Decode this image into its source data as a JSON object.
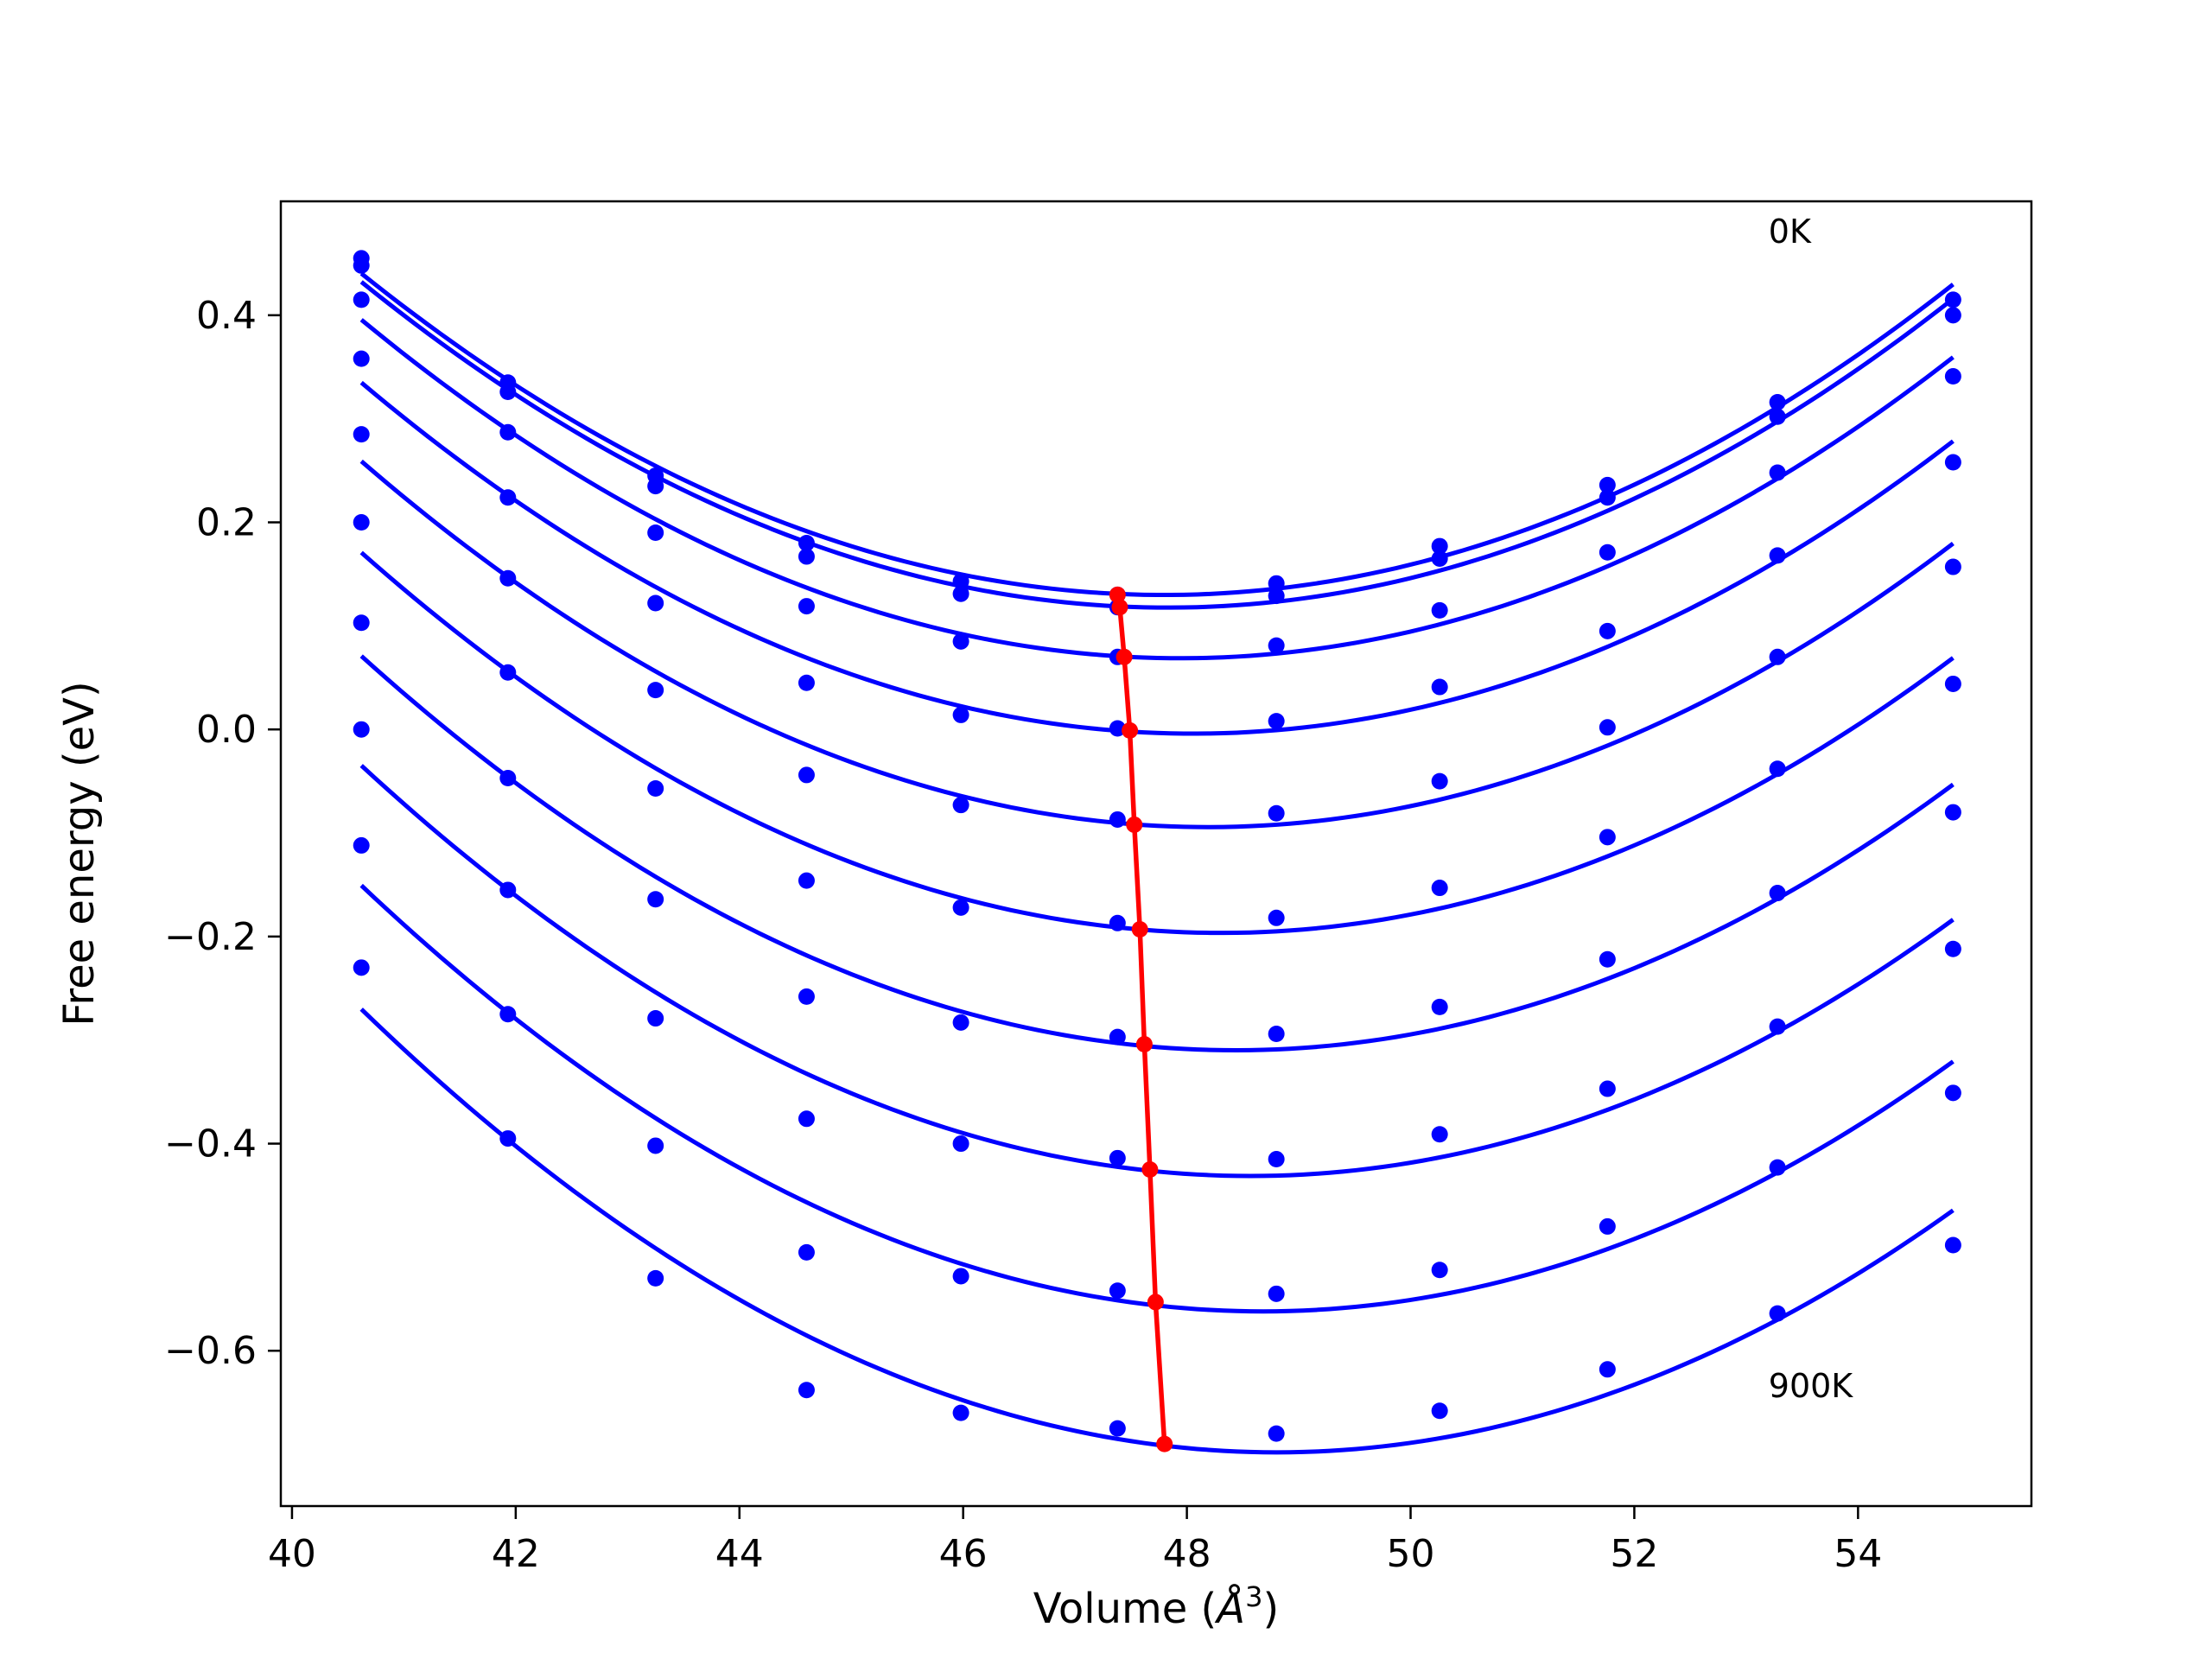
{
  "chart_data": {
    "type": "line",
    "xlabel_prefix": "Volume (",
    "xlabel_unit": "Å",
    "xlabel_exp": "3",
    "xlabel_suffix": ")",
    "ylabel": "Free energy (eV)",
    "xlim": [
      39.9,
      55.55
    ],
    "ylim": [
      -0.75,
      0.51
    ],
    "xticks": [
      40,
      42,
      44,
      46,
      48,
      50,
      52,
      54
    ],
    "xtick_labels": [
      "40",
      "42",
      "44",
      "46",
      "48",
      "50",
      "52",
      "54"
    ],
    "yticks": [
      -0.6,
      -0.4,
      -0.2,
      0.0,
      0.2,
      0.4
    ],
    "ytick_labels": [
      "−0.6",
      "−0.4",
      "−0.2",
      "0.0",
      "0.2",
      "0.4"
    ],
    "grid": false,
    "colors": {
      "fit": "#0000ff",
      "points": "#0000ff",
      "minimum": "#ff0000",
      "frame": "#000000"
    },
    "annotations": [
      {
        "text": "0K",
        "x": 53.2,
        "y": 0.47
      },
      {
        "text": "900K",
        "x": 53.2,
        "y": -0.645
      }
    ],
    "x_points": [
      40.62,
      41.93,
      43.25,
      44.6,
      45.98,
      47.38,
      48.8,
      50.26,
      51.76,
      53.28,
      54.85
    ],
    "series": [
      {
        "values": [
          0.455,
          0.335,
          0.245,
          0.18,
          0.143,
          0.13,
          0.141,
          0.177,
          0.236,
          0.316,
          0.415
        ],
        "min": [
          47.38,
          0.13
        ]
      },
      {
        "values": [
          0.448,
          0.326,
          0.235,
          0.167,
          0.131,
          0.118,
          0.129,
          0.165,
          0.224,
          0.302,
          0.4
        ],
        "min": [
          47.4,
          0.118
        ]
      },
      {
        "values": [
          0.415,
          0.287,
          0.19,
          0.119,
          0.085,
          0.07,
          0.081,
          0.115,
          0.171,
          0.248,
          0.341
        ],
        "min": [
          47.44,
          0.07
        ]
      },
      {
        "values": [
          0.358,
          0.224,
          0.122,
          0.045,
          0.014,
          0.001,
          0.008,
          0.041,
          0.095,
          0.168,
          0.258
        ],
        "min": [
          47.49,
          -0.001
        ]
      },
      {
        "values": [
          0.285,
          0.146,
          0.038,
          -0.044,
          -0.073,
          -0.087,
          -0.081,
          -0.05,
          0.002,
          0.07,
          0.157
        ],
        "min": [
          47.53,
          -0.092
        ]
      },
      {
        "values": [
          0.2,
          0.055,
          -0.057,
          -0.146,
          -0.172,
          -0.187,
          -0.182,
          -0.153,
          -0.104,
          -0.038,
          0.044
        ],
        "min": [
          47.58,
          -0.193
        ]
      },
      {
        "values": [
          0.103,
          -0.047,
          -0.164,
          -0.258,
          -0.283,
          -0.297,
          -0.294,
          -0.268,
          -0.222,
          -0.158,
          -0.08
        ],
        "min": [
          47.62,
          -0.304
        ]
      },
      {
        "values": [
          0.0,
          -0.155,
          -0.279,
          -0.376,
          -0.4,
          -0.414,
          -0.415,
          -0.391,
          -0.347,
          -0.287,
          -0.212
        ],
        "min": [
          47.67,
          -0.425
        ]
      },
      {
        "values": [
          -0.112,
          -0.275,
          -0.402,
          -0.505,
          -0.528,
          -0.542,
          -0.545,
          -0.522,
          -0.48,
          -0.423,
          -0.351
        ],
        "min": [
          47.72,
          -0.553
        ]
      },
      {
        "values": [
          -0.23,
          -0.395,
          -0.53,
          -0.638,
          -0.66,
          -0.675,
          -0.68,
          -0.658,
          -0.618,
          -0.564,
          -0.498
        ],
        "min": [
          47.8,
          -0.69
        ]
      }
    ]
  }
}
